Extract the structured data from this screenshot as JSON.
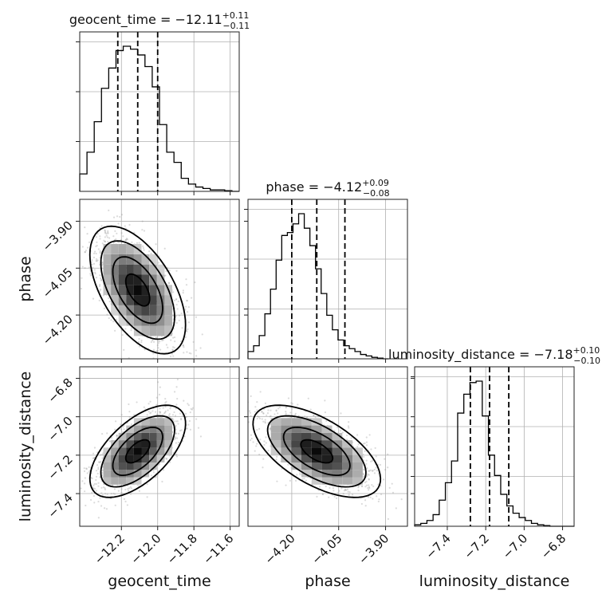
{
  "chart_data": {
    "type": "corner",
    "parameters": [
      {
        "name": "geocent_time",
        "xlim": [
          -12.43,
          -11.55
        ],
        "ticks": [
          -12.2,
          -12.0,
          -11.8,
          -11.6
        ],
        "tick_labels": [
          "−12.2",
          "−12.0",
          "−11.8",
          "−11.6"
        ]
      },
      {
        "name": "phase",
        "xlim": [
          -4.34,
          -3.83
        ],
        "ticks": [
          -4.2,
          -4.05,
          -3.9
        ],
        "tick_labels": [
          "−4.20",
          "−4.05",
          "−3.90"
        ]
      },
      {
        "name": "luminosity_distance",
        "xlim": [
          -7.57,
          -6.74
        ],
        "ticks": [
          -7.4,
          -7.2,
          -7.0,
          -6.8
        ],
        "tick_labels": [
          "−7.4",
          "−7.2",
          "−7.0",
          "−6.8"
        ]
      }
    ],
    "titles": [
      {
        "label": "geocent_time = −12.11",
        "plus": "+0.11",
        "minus": "−0.11"
      },
      {
        "label": "phase = −4.12",
        "plus": "+0.09",
        "minus": "−0.08"
      },
      {
        "label": "luminosity_distance = −7.18",
        "plus": "+0.10",
        "minus": "−0.10"
      }
    ],
    "quantiles": [
      [
        -12.22,
        -12.11,
        -12.0
      ],
      [
        -4.2,
        -4.12,
        -4.03
      ],
      [
        -7.28,
        -7.18,
        -7.08
      ]
    ],
    "histograms": [
      {
        "bin_edges_start": -12.43,
        "bin_width": 0.04,
        "counts": [
          0.12,
          0.27,
          0.48,
          0.71,
          0.85,
          0.97,
          1.0,
          0.98,
          0.94,
          0.86,
          0.72,
          0.46,
          0.27,
          0.2,
          0.09,
          0.05,
          0.03,
          0.02,
          0.01,
          0.01,
          0.005,
          0.0
        ]
      },
      {
        "bin_edges_start": -4.34,
        "bin_width": 0.018,
        "counts": [
          0.05,
          0.09,
          0.16,
          0.31,
          0.48,
          0.68,
          0.85,
          0.87,
          0.93,
          1.0,
          0.9,
          0.78,
          0.62,
          0.45,
          0.3,
          0.2,
          0.13,
          0.09,
          0.07,
          0.05,
          0.03,
          0.02,
          0.01,
          0.005,
          0.0
        ]
      },
      {
        "bin_edges_start": -7.57,
        "bin_width": 0.032,
        "counts": [
          0.01,
          0.02,
          0.04,
          0.08,
          0.18,
          0.3,
          0.45,
          0.78,
          0.91,
          0.99,
          1.0,
          0.76,
          0.49,
          0.35,
          0.22,
          0.14,
          0.09,
          0.06,
          0.04,
          0.02,
          0.01,
          0.005,
          0.0,
          0.0,
          0.0,
          0.0
        ]
      }
    ],
    "correlations": {
      "phase_vs_geocent_time": {
        "x_mean": -12.11,
        "y_mean": -4.12,
        "direction": "negative"
      },
      "luminosity_distance_vs_geocent_time": {
        "x_mean": -12.11,
        "y_mean": -7.18,
        "direction": "positive"
      },
      "luminosity_distance_vs_phase": {
        "x_mean": -4.12,
        "y_mean": -7.18,
        "direction": "negative"
      }
    },
    "grid": true,
    "colors": {
      "lines": "#000000",
      "points": "#999999",
      "density": "#000000"
    }
  }
}
